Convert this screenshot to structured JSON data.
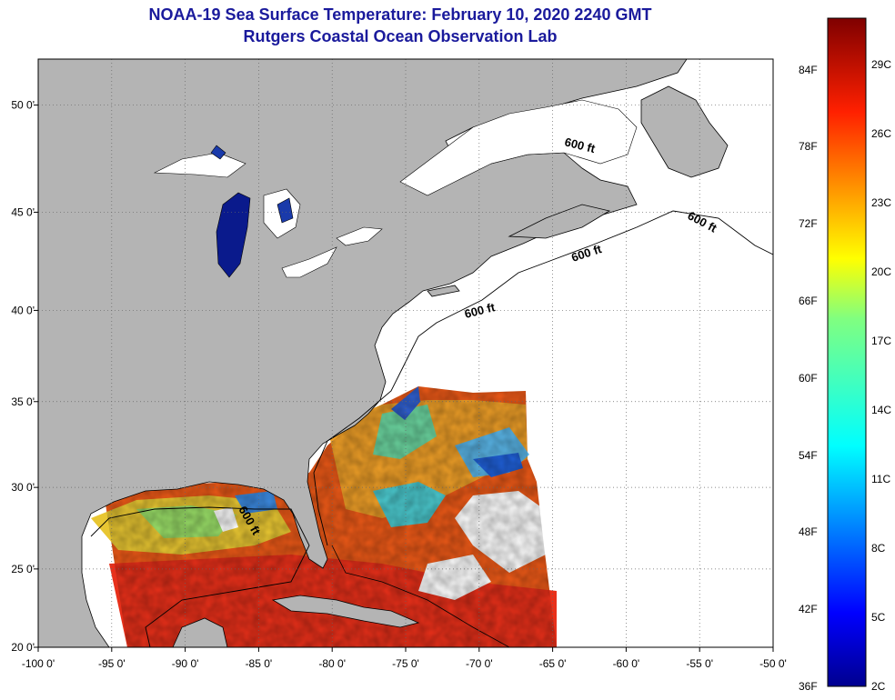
{
  "title": {
    "line1": "NOAA-19 Sea Surface Temperature:  February 10, 2020 2240 GMT",
    "line2": "Rutgers Coastal Ocean Observation Lab"
  },
  "map": {
    "lon_range": [
      -100,
      -50
    ],
    "lat_range": [
      20,
      52
    ],
    "lon_ticks": [
      {
        "value": -100,
        "label": "-100 0'"
      },
      {
        "value": -95,
        "label": "-95 0'"
      },
      {
        "value": -90,
        "label": "-90 0'"
      },
      {
        "value": -85,
        "label": "-85 0'"
      },
      {
        "value": -80,
        "label": "-80 0'"
      },
      {
        "value": -75,
        "label": "-75 0'"
      },
      {
        "value": -70,
        "label": "-70 0'"
      },
      {
        "value": -65,
        "label": "-65 0'"
      },
      {
        "value": -60,
        "label": "-60 0'"
      },
      {
        "value": -55,
        "label": "-55 0'"
      },
      {
        "value": -50,
        "label": "-50 0'"
      }
    ],
    "lat_ticks": [
      {
        "value": 20,
        "label": "20 0'"
      },
      {
        "value": 25,
        "label": "25 0'"
      },
      {
        "value": 30,
        "label": "30 0'"
      },
      {
        "value": 35,
        "label": "35 0'"
      },
      {
        "value": 40,
        "label": "40 0'"
      },
      {
        "value": 45,
        "label": "45 0'"
      },
      {
        "value": 50,
        "label": "50 0'"
      }
    ],
    "contour_labels": [
      "600 ft",
      "600 ft",
      "600 ft",
      "600 ft",
      "600 ft"
    ],
    "colors": {
      "land": "#b4b4b4",
      "ocean_nodata": "#ffffff",
      "lake_cold": "#0a1a8c",
      "grid": "#666666"
    }
  },
  "colorbar": {
    "min_f": 36,
    "max_f": 88,
    "min_c": 2,
    "max_c": 31,
    "f_labels": [
      "84F",
      "78F",
      "72F",
      "66F",
      "60F",
      "54F",
      "48F",
      "42F",
      "36F"
    ],
    "c_labels": [
      "29C",
      "26C",
      "23C",
      "20C",
      "17C",
      "14C",
      "11C",
      "8C",
      "5C",
      "2C"
    ]
  }
}
